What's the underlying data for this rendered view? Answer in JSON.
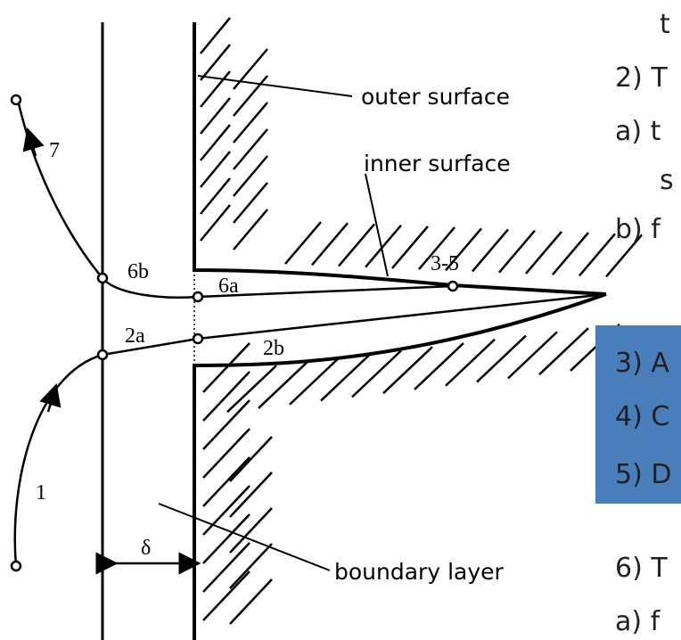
{
  "labels": {
    "outer": "outer surface",
    "inner": "inner surface",
    "boundary": "boundary layer",
    "delta": "δ",
    "p1": "1",
    "p2a": "2a",
    "p2b": "2b",
    "p35": "3-5",
    "p6a": "6a",
    "p6b": "6b",
    "p7": "7"
  },
  "side_text": [
    "t",
    "2) T",
    "a) t",
    "s",
    "b) f",
    "3) A",
    "4) C",
    "5) D",
    "6) T",
    "a) f"
  ]
}
